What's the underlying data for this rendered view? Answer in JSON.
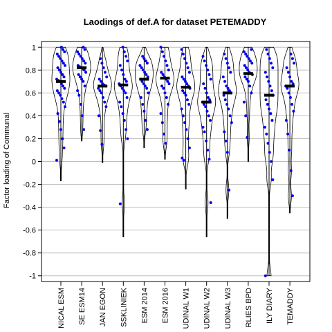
{
  "chart_data": {
    "type": "violin",
    "title": "Laodings of def.A for dataset PETEMADDY",
    "ylabel": "Factor loading of Communal",
    "xlabel": "",
    "ylim": [
      -1.05,
      1.05
    ],
    "yticks": [
      "1",
      "0.8",
      "0.6",
      "0.4",
      "0.2",
      "0",
      "-0.2",
      "-0.4",
      "-0.6",
      "-0.8",
      "-1"
    ],
    "grid": "horizontal",
    "point_color": "#0000ee",
    "categories": [
      "NICAL ESM",
      "SE ESM14",
      "JAN EGON",
      "SSKLINIEK",
      "ESM 2014",
      "ESM 2016",
      "UDINAL W1",
      "UDINAL W2",
      "UDINAL W3",
      "RLIES BPD",
      "ILY DIARY",
      "TEMADDY"
    ],
    "series": [
      {
        "median": 0.7,
        "min": -0.17,
        "max": 1.0,
        "points": [
          0.01,
          0.12,
          0.2,
          0.28,
          0.35,
          0.42,
          0.48,
          0.52,
          0.55,
          0.58,
          0.6,
          0.62,
          0.64,
          0.66,
          0.68,
          0.7,
          0.71,
          0.72,
          0.74,
          0.76,
          0.78,
          0.8,
          0.82,
          0.84,
          0.86,
          0.88,
          0.9,
          0.92,
          0.94,
          0.96,
          0.98,
          1.0
        ]
      },
      {
        "median": 0.82,
        "min": 0.18,
        "max": 1.0,
        "points": [
          0.28,
          0.4,
          0.5,
          0.58,
          0.62,
          0.66,
          0.7,
          0.72,
          0.74,
          0.76,
          0.78,
          0.8,
          0.81,
          0.82,
          0.83,
          0.84,
          0.86,
          0.88,
          0.9,
          0.92,
          0.94,
          0.96,
          0.98,
          1.0
        ]
      },
      {
        "median": 0.66,
        "min": -0.01,
        "max": 1.0,
        "points": [
          0.15,
          0.27,
          0.4,
          0.48,
          0.52,
          0.56,
          0.6,
          0.62,
          0.64,
          0.66,
          0.67,
          0.68,
          0.7,
          0.72,
          0.74,
          0.78,
          0.82,
          0.86,
          0.9
        ]
      },
      {
        "median": 0.67,
        "min": -0.66,
        "max": 1.0,
        "points": [
          -0.37,
          0.2,
          0.28,
          0.36,
          0.42,
          0.48,
          0.52,
          0.56,
          0.6,
          0.62,
          0.64,
          0.66,
          0.68,
          0.7,
          0.72,
          0.76,
          0.8,
          0.84,
          0.88,
          0.92,
          0.96,
          1.0
        ]
      },
      {
        "median": 0.72,
        "min": 0.12,
        "max": 1.0,
        "points": [
          0.28,
          0.36,
          0.44,
          0.5,
          0.56,
          0.6,
          0.64,
          0.66,
          0.68,
          0.7,
          0.72,
          0.74,
          0.76,
          0.78,
          0.8,
          0.82,
          0.84,
          0.86,
          0.88,
          0.9,
          0.92
        ]
      },
      {
        "median": 0.73,
        "min": 0.02,
        "max": 1.0,
        "points": [
          0.16,
          0.24,
          0.34,
          0.42,
          0.5,
          0.56,
          0.6,
          0.64,
          0.66,
          0.68,
          0.7,
          0.72,
          0.74,
          0.76,
          0.78,
          0.8,
          0.84,
          0.88,
          0.92,
          0.96,
          1.0
        ]
      },
      {
        "median": 0.65,
        "min": -0.24,
        "max": 1.0,
        "points": [
          0.01,
          0.03,
          0.12,
          0.2,
          0.28,
          0.34,
          0.4,
          0.46,
          0.5,
          0.54,
          0.58,
          0.6,
          0.62,
          0.64,
          0.66,
          0.68,
          0.7,
          0.72,
          0.74,
          0.78,
          0.82,
          0.86,
          0.9,
          0.94,
          0.98
        ]
      },
      {
        "median": 0.52,
        "min": -0.66,
        "max": 1.0,
        "points": [
          -0.36,
          0.02,
          0.1,
          0.18,
          0.26,
          0.3,
          0.36,
          0.4,
          0.44,
          0.48,
          0.5,
          0.52,
          0.54,
          0.56,
          0.6,
          0.64,
          0.68,
          0.72,
          0.76,
          0.8,
          0.84,
          0.88,
          0.92
        ]
      },
      {
        "median": 0.6,
        "min": -0.5,
        "max": 1.0,
        "points": [
          -0.25,
          0.08,
          0.18,
          0.26,
          0.34,
          0.4,
          0.46,
          0.5,
          0.54,
          0.58,
          0.6,
          0.62,
          0.64,
          0.66,
          0.7,
          0.74,
          0.78,
          0.82,
          0.86,
          0.9,
          0.94
        ]
      },
      {
        "median": 0.77,
        "min": 0.0,
        "max": 1.0,
        "points": [
          0.21,
          0.4,
          0.52,
          0.6,
          0.66,
          0.7,
          0.72,
          0.74,
          0.76,
          0.77,
          0.78,
          0.8,
          0.82,
          0.84,
          0.86,
          0.88,
          0.9,
          0.92,
          0.94,
          0.96,
          0.98
        ]
      },
      {
        "median": 0.58,
        "min": -1.0,
        "max": 1.0,
        "points": [
          -1.0,
          -0.16,
          0.0,
          0.08,
          0.16,
          0.24,
          0.3,
          0.36,
          0.42,
          0.46,
          0.5,
          0.54,
          0.58,
          0.62,
          0.66,
          0.7,
          0.74,
          0.78,
          0.82,
          0.86,
          0.9,
          0.94,
          0.98
        ]
      },
      {
        "median": 0.66,
        "min": -0.45,
        "max": 1.0,
        "points": [
          -0.3,
          -0.08,
          0.1,
          0.24,
          0.36,
          0.44,
          0.5,
          0.56,
          0.6,
          0.64,
          0.66,
          0.68,
          0.7,
          0.74,
          0.78,
          0.82,
          0.86,
          0.9,
          0.94
        ]
      }
    ]
  }
}
